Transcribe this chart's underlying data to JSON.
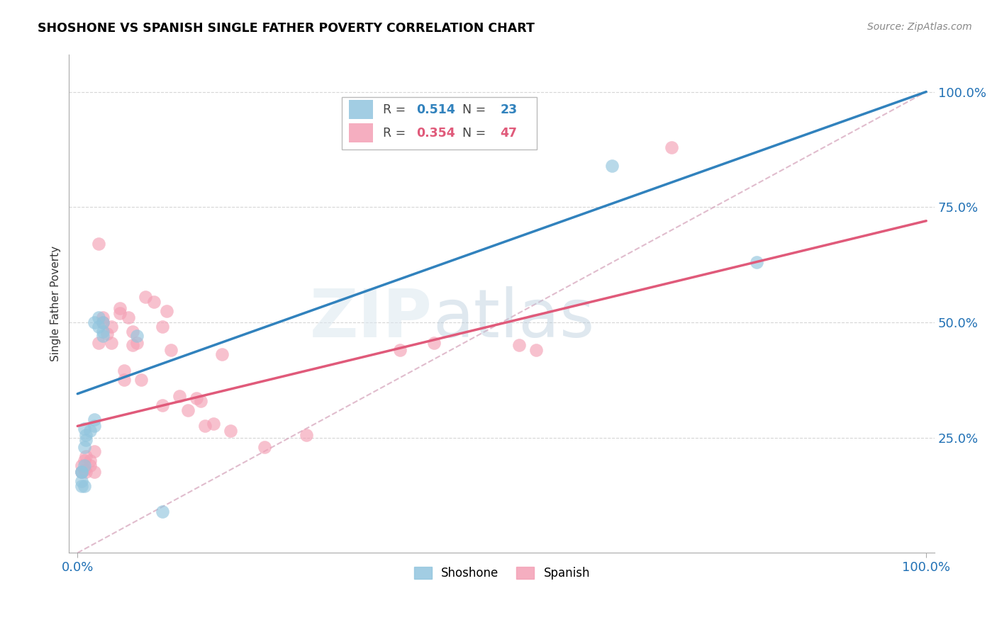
{
  "title": "SHOSHONE VS SPANISH SINGLE FATHER POVERTY CORRELATION CHART",
  "source": "Source: ZipAtlas.com",
  "ylabel": "Single Father Poverty",
  "shoshone_R": "0.514",
  "shoshone_N": "23",
  "spanish_R": "0.354",
  "spanish_N": "47",
  "shoshone_color": "#92c5de",
  "spanish_color": "#f4a0b5",
  "shoshone_line_color": "#3182bd",
  "spanish_line_color": "#e05a7a",
  "background_color": "#ffffff",
  "grid_color": "#cccccc",
  "shoshone_x": [
    0.02,
    0.025,
    0.03,
    0.025,
    0.03,
    0.03,
    0.02,
    0.02,
    0.015,
    0.01,
    0.01,
    0.008,
    0.008,
    0.005,
    0.005,
    0.005,
    0.008,
    0.008,
    0.005,
    0.07,
    0.63,
    0.8,
    0.1
  ],
  "shoshone_y": [
    0.5,
    0.51,
    0.5,
    0.49,
    0.47,
    0.48,
    0.29,
    0.275,
    0.265,
    0.255,
    0.245,
    0.27,
    0.23,
    0.175,
    0.155,
    0.175,
    0.19,
    0.145,
    0.145,
    0.47,
    0.84,
    0.63,
    0.09
  ],
  "spanish_x": [
    0.005,
    0.005,
    0.008,
    0.008,
    0.01,
    0.01,
    0.015,
    0.015,
    0.02,
    0.02,
    0.025,
    0.025,
    0.03,
    0.03,
    0.035,
    0.04,
    0.04,
    0.05,
    0.05,
    0.055,
    0.055,
    0.06,
    0.065,
    0.065,
    0.07,
    0.075,
    0.08,
    0.09,
    0.1,
    0.1,
    0.105,
    0.11,
    0.12,
    0.13,
    0.14,
    0.145,
    0.15,
    0.16,
    0.17,
    0.18,
    0.22,
    0.27,
    0.38,
    0.42,
    0.52,
    0.54,
    0.7
  ],
  "spanish_y": [
    0.175,
    0.19,
    0.18,
    0.2,
    0.21,
    0.175,
    0.19,
    0.2,
    0.22,
    0.175,
    0.67,
    0.455,
    0.51,
    0.5,
    0.475,
    0.455,
    0.49,
    0.53,
    0.52,
    0.375,
    0.395,
    0.51,
    0.48,
    0.45,
    0.455,
    0.375,
    0.555,
    0.545,
    0.32,
    0.49,
    0.525,
    0.44,
    0.34,
    0.31,
    0.335,
    0.33,
    0.275,
    0.28,
    0.43,
    0.265,
    0.23,
    0.255,
    0.44,
    0.455,
    0.45,
    0.44,
    0.88
  ],
  "xlim": [
    0,
    1.0
  ],
  "ylim": [
    0,
    1.0
  ]
}
